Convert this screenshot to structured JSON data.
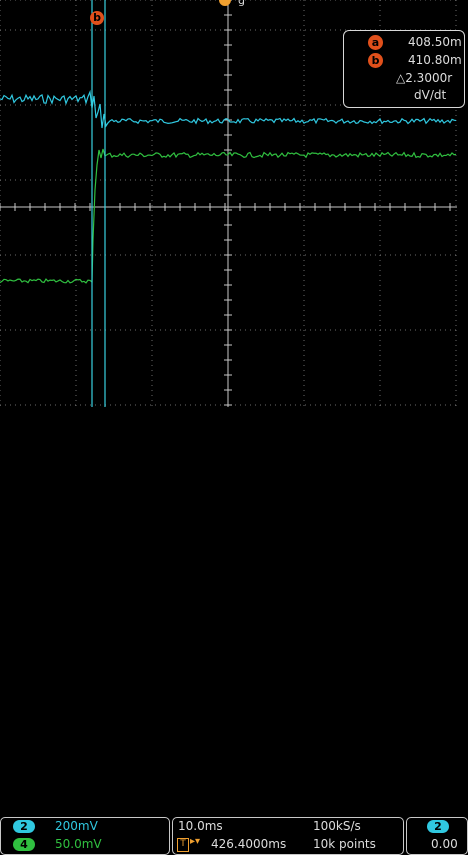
{
  "colors": {
    "background": "#000000",
    "grid": "#9a9a9a",
    "channel2": "#30c8e0",
    "channel4": "#30c040",
    "cursor": "#38d0e0",
    "cursor_badge": "#e0501b",
    "trigger": "#f0a030",
    "text": "#dddddd"
  },
  "top_markers": {
    "cursor_b_label": "b",
    "trigger_icon": "trigger-marker-icon"
  },
  "cursor_readout": {
    "a_label": "a",
    "a_value": "408.50m",
    "b_label": "b",
    "b_value": "410.80m",
    "delta": "△2.3000r",
    "rate": "dV/dt"
  },
  "channels": [
    {
      "number": "2",
      "scale": "200mV",
      "color": "#30c8e0"
    },
    {
      "number": "4",
      "scale": "50.0mV",
      "color": "#30c040"
    }
  ],
  "timebase": {
    "time_per_div": "10.0ms",
    "sample_rate": "100kS/s",
    "trigger_position": "426.4000ms",
    "record_length": "10k points"
  },
  "trigger_panel": {
    "source": "2",
    "level": "0.00"
  }
}
